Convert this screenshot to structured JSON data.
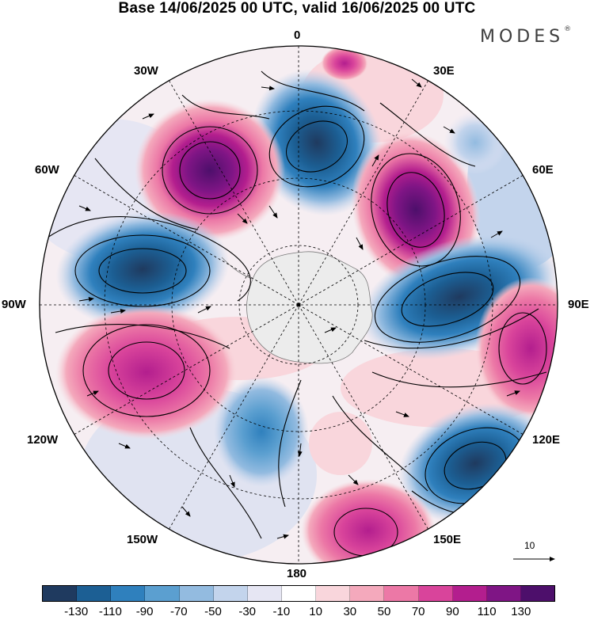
{
  "title": "Base 14/06/2025 00 UTC, valid 16/06/2025 00 UTC",
  "brand": "MODES",
  "brand_mark": "®",
  "longitude_labels": {
    "lon_0": "0",
    "lon_30e": "30E",
    "lon_60e": "60E",
    "lon_90e": "90E",
    "lon_120e": "120E",
    "lon_150e": "150E",
    "lon_180": "180",
    "lon_150w": "150W",
    "lon_120w": "120W",
    "lon_90w": "90W",
    "lon_60w": "60W",
    "lon_30w": "30W"
  },
  "vector_scale_label": "10",
  "colorbar": {
    "colors": [
      "#1f3a5f",
      "#1c5f94",
      "#2f80bd",
      "#5b9fd0",
      "#93bbe0",
      "#c3d4ec",
      "#e6e6f3",
      "#ffffff",
      "#f9d6dc",
      "#f4a9bc",
      "#ec78a6",
      "#d9449b",
      "#b31e8e",
      "#7f1585",
      "#4d0f6b"
    ],
    "ticks": [
      "-130",
      "-110",
      "-90",
      "-70",
      "-50",
      "-30",
      "-10",
      "10",
      "30",
      "50",
      "70",
      "90",
      "110",
      "130"
    ]
  }
}
